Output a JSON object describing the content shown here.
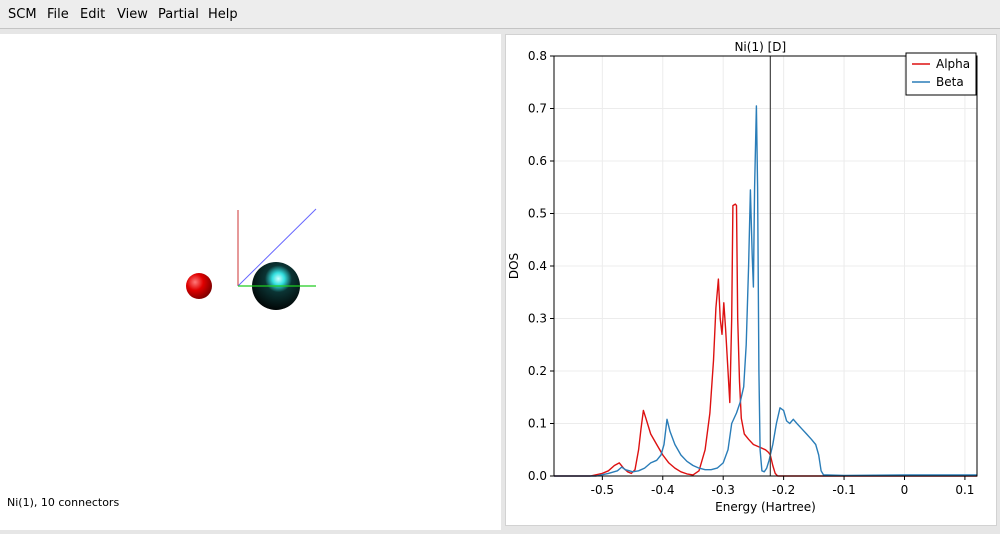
{
  "menu": {
    "items": [
      {
        "label": "SCM"
      },
      {
        "label": "File"
      },
      {
        "label": "Edit"
      },
      {
        "label": "View"
      },
      {
        "label": "Partial"
      },
      {
        "label": "Help"
      }
    ]
  },
  "viewer": {
    "status_text": "Ni(1), 10 connectors",
    "atom_colors": {
      "small_atom": "#d40000",
      "large_atom": "#111111",
      "highlight": "#2ee6e6"
    },
    "axis_colors": {
      "x": "#22cc22",
      "y": "#cc3333",
      "z": "#6666ff"
    }
  },
  "chart_data": {
    "type": "line",
    "title": "Ni(1) [D]",
    "xlabel": "Energy (Hartree)",
    "ylabel": "DOS",
    "xlim": [
      -0.58,
      0.12
    ],
    "ylim": [
      0,
      0.8
    ],
    "xticks": [
      -0.5,
      -0.4,
      -0.3,
      -0.2,
      -0.1,
      0,
      0.1
    ],
    "yticks": [
      0,
      0.1,
      0.2,
      0.3,
      0.4,
      0.5,
      0.6,
      0.7,
      0.8
    ],
    "grid": true,
    "legend_position": "top-right",
    "vertical_line_x": -0.222,
    "series": [
      {
        "name": "Alpha",
        "color": "#dd1111",
        "points": [
          [
            -0.58,
            0
          ],
          [
            -0.52,
            0
          ],
          [
            -0.5,
            0.005
          ],
          [
            -0.49,
            0.01
          ],
          [
            -0.48,
            0.02
          ],
          [
            -0.472,
            0.025
          ],
          [
            -0.465,
            0.015
          ],
          [
            -0.458,
            0.008
          ],
          [
            -0.452,
            0.005
          ],
          [
            -0.446,
            0.012
          ],
          [
            -0.44,
            0.05
          ],
          [
            -0.436,
            0.09
          ],
          [
            -0.432,
            0.125
          ],
          [
            -0.428,
            0.11
          ],
          [
            -0.42,
            0.08
          ],
          [
            -0.41,
            0.06
          ],
          [
            -0.4,
            0.04
          ],
          [
            -0.39,
            0.025
          ],
          [
            -0.38,
            0.015
          ],
          [
            -0.37,
            0.008
          ],
          [
            -0.36,
            0.004
          ],
          [
            -0.35,
            0.002
          ],
          [
            -0.34,
            0.01
          ],
          [
            -0.33,
            0.05
          ],
          [
            -0.322,
            0.12
          ],
          [
            -0.316,
            0.22
          ],
          [
            -0.312,
            0.32
          ],
          [
            -0.308,
            0.375
          ],
          [
            -0.305,
            0.3
          ],
          [
            -0.302,
            0.27
          ],
          [
            -0.299,
            0.33
          ],
          [
            -0.296,
            0.28
          ],
          [
            -0.292,
            0.2
          ],
          [
            -0.289,
            0.14
          ],
          [
            -0.286,
            0.3
          ],
          [
            -0.284,
            0.515
          ],
          [
            -0.28,
            0.518
          ],
          [
            -0.278,
            0.515
          ],
          [
            -0.276,
            0.3
          ],
          [
            -0.273,
            0.18
          ],
          [
            -0.27,
            0.11
          ],
          [
            -0.265,
            0.08
          ],
          [
            -0.258,
            0.07
          ],
          [
            -0.25,
            0.06
          ],
          [
            -0.24,
            0.055
          ],
          [
            -0.23,
            0.05
          ],
          [
            -0.225,
            0.045
          ],
          [
            -0.222,
            0.04
          ],
          [
            -0.218,
            0.02
          ],
          [
            -0.214,
            0.005
          ],
          [
            -0.21,
            0
          ],
          [
            -0.2,
            0
          ],
          [
            0.12,
            0
          ]
        ]
      },
      {
        "name": "Beta",
        "color": "#2a7db8",
        "points": [
          [
            -0.58,
            0
          ],
          [
            -0.51,
            0
          ],
          [
            -0.49,
            0.005
          ],
          [
            -0.475,
            0.01
          ],
          [
            -0.468,
            0.017
          ],
          [
            -0.462,
            0.012
          ],
          [
            -0.455,
            0.01
          ],
          [
            -0.45,
            0.008
          ],
          [
            -0.44,
            0.01
          ],
          [
            -0.43,
            0.015
          ],
          [
            -0.42,
            0.025
          ],
          [
            -0.41,
            0.03
          ],
          [
            -0.403,
            0.04
          ],
          [
            -0.398,
            0.06
          ],
          [
            -0.393,
            0.108
          ],
          [
            -0.388,
            0.085
          ],
          [
            -0.38,
            0.06
          ],
          [
            -0.37,
            0.04
          ],
          [
            -0.36,
            0.028
          ],
          [
            -0.35,
            0.02
          ],
          [
            -0.34,
            0.015
          ],
          [
            -0.33,
            0.012
          ],
          [
            -0.32,
            0.012
          ],
          [
            -0.31,
            0.015
          ],
          [
            -0.3,
            0.025
          ],
          [
            -0.292,
            0.05
          ],
          [
            -0.286,
            0.1
          ],
          [
            -0.278,
            0.12
          ],
          [
            -0.272,
            0.14
          ],
          [
            -0.266,
            0.17
          ],
          [
            -0.262,
            0.25
          ],
          [
            -0.258,
            0.4
          ],
          [
            -0.255,
            0.545
          ],
          [
            -0.252,
            0.42
          ],
          [
            -0.25,
            0.36
          ],
          [
            -0.248,
            0.55
          ],
          [
            -0.245,
            0.705
          ],
          [
            -0.243,
            0.55
          ],
          [
            -0.241,
            0.2
          ],
          [
            -0.239,
            0.05
          ],
          [
            -0.236,
            0.01
          ],
          [
            -0.232,
            0.008
          ],
          [
            -0.228,
            0.015
          ],
          [
            -0.224,
            0.03
          ],
          [
            -0.218,
            0.06
          ],
          [
            -0.212,
            0.1
          ],
          [
            -0.206,
            0.13
          ],
          [
            -0.2,
            0.125
          ],
          [
            -0.195,
            0.105
          ],
          [
            -0.19,
            0.1
          ],
          [
            -0.184,
            0.108
          ],
          [
            -0.178,
            0.1
          ],
          [
            -0.17,
            0.09
          ],
          [
            -0.162,
            0.08
          ],
          [
            -0.154,
            0.07
          ],
          [
            -0.147,
            0.06
          ],
          [
            -0.142,
            0.04
          ],
          [
            -0.138,
            0.01
          ],
          [
            -0.134,
            0.002
          ],
          [
            -0.128,
            0.002
          ],
          [
            -0.1,
            0.001
          ],
          [
            0,
            0.002
          ],
          [
            0.12,
            0.002
          ]
        ]
      }
    ]
  }
}
